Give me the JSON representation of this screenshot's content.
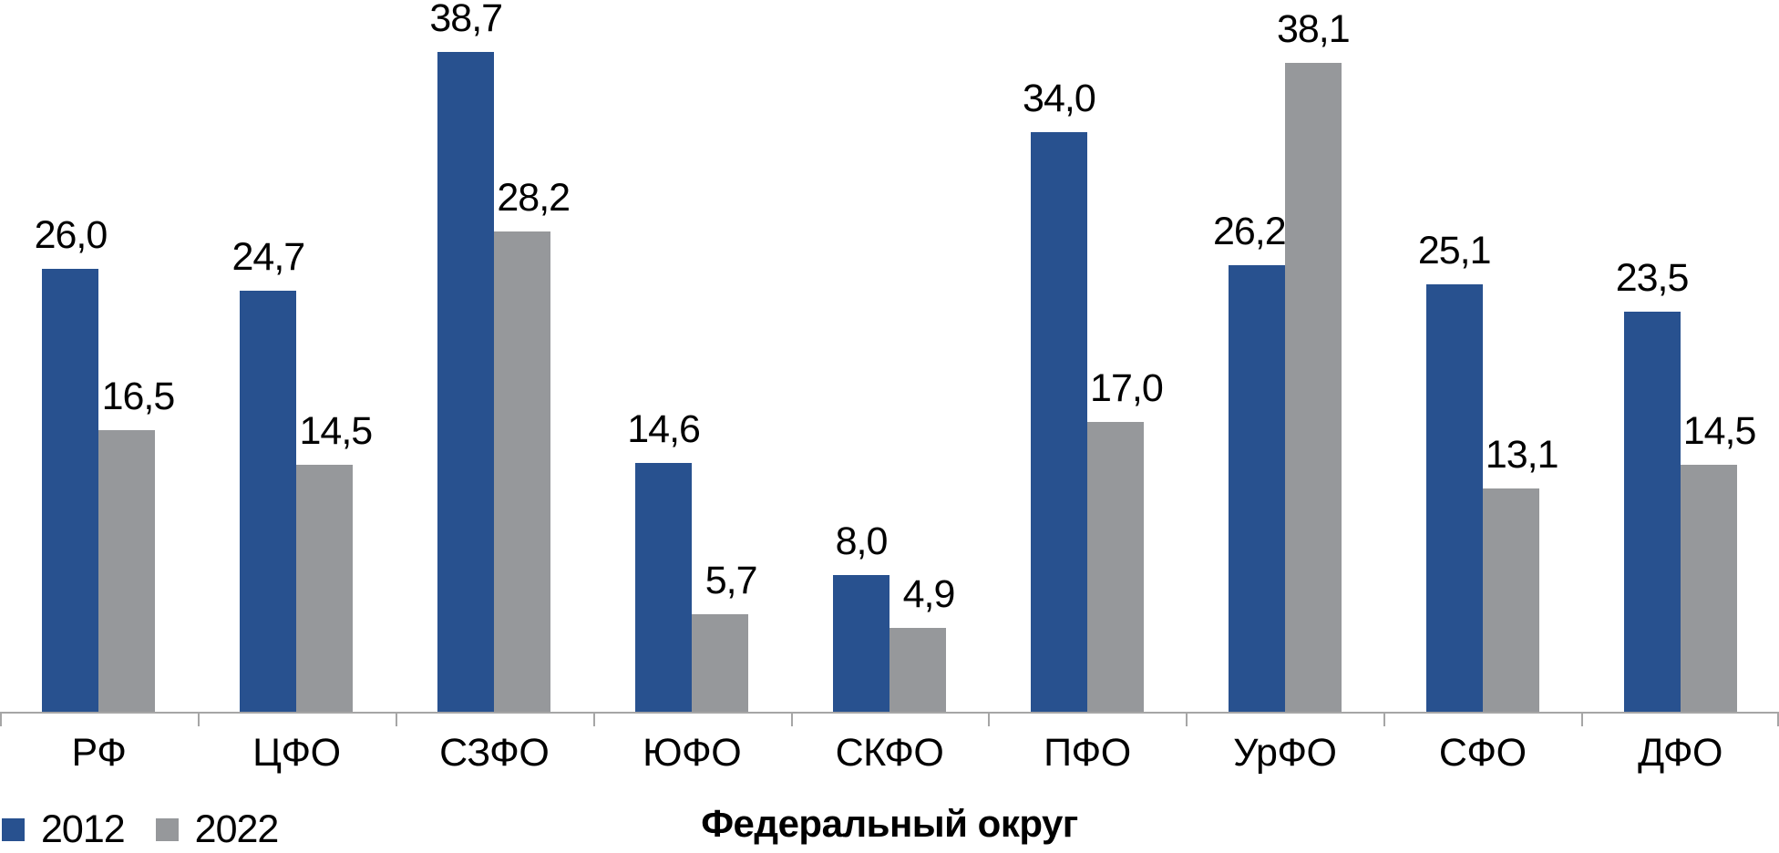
{
  "chart_data": {
    "type": "bar",
    "title": "",
    "categories": [
      "РФ",
      "ЦФО",
      "СЗФО",
      "ЮФО",
      "СКФО",
      "ПФО",
      "УрФО",
      "СФО",
      "ДФО"
    ],
    "series": [
      {
        "name": "2012",
        "color": "#28518F",
        "values": [
          26.0,
          24.7,
          38.7,
          14.6,
          8.0,
          34.0,
          26.2,
          25.1,
          23.5
        ]
      },
      {
        "name": "2022",
        "color": "#96989B",
        "values": [
          16.5,
          14.5,
          28.2,
          5.7,
          4.9,
          17.0,
          38.1,
          13.1,
          14.5
        ]
      }
    ],
    "xlabel": "Федеральный округ",
    "ylabel": "",
    "ylim": [
      0,
      40
    ],
    "grid": false,
    "legend_position": "bottom-left",
    "value_labels": "outside-end",
    "decimal_separator": ","
  },
  "axis": {
    "color": "#A6A6A6"
  }
}
